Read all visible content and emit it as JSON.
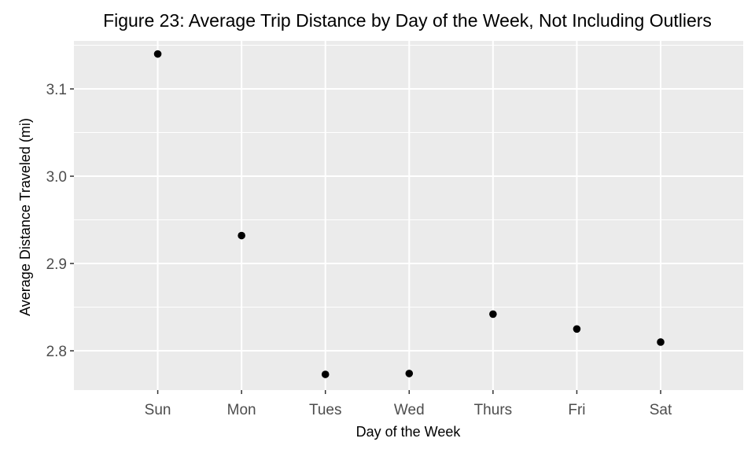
{
  "chart_data": {
    "type": "scatter",
    "title": "Figure 23: Average Trip Distance by Day of the Week, Not Including Outliers",
    "xlabel": "Day of the Week",
    "ylabel": "Average Distance Traveled (mi)",
    "categories": [
      "Sun",
      "Mon",
      "Tues",
      "Wed",
      "Thurs",
      "Fri",
      "Sat"
    ],
    "values": [
      3.14,
      2.932,
      2.773,
      2.774,
      2.842,
      2.825,
      2.81
    ],
    "ylim": [
      2.755,
      3.155
    ],
    "yticks": [
      2.8,
      2.9,
      3.0,
      3.1
    ],
    "ytick_labels": [
      "2.8",
      "2.9",
      "3.0",
      "3.1"
    ],
    "grid": true,
    "legend": "none",
    "colors": {
      "panel": "#ebebeb",
      "grid": "#ffffff",
      "point": "#000000",
      "tick": "#333333"
    }
  }
}
